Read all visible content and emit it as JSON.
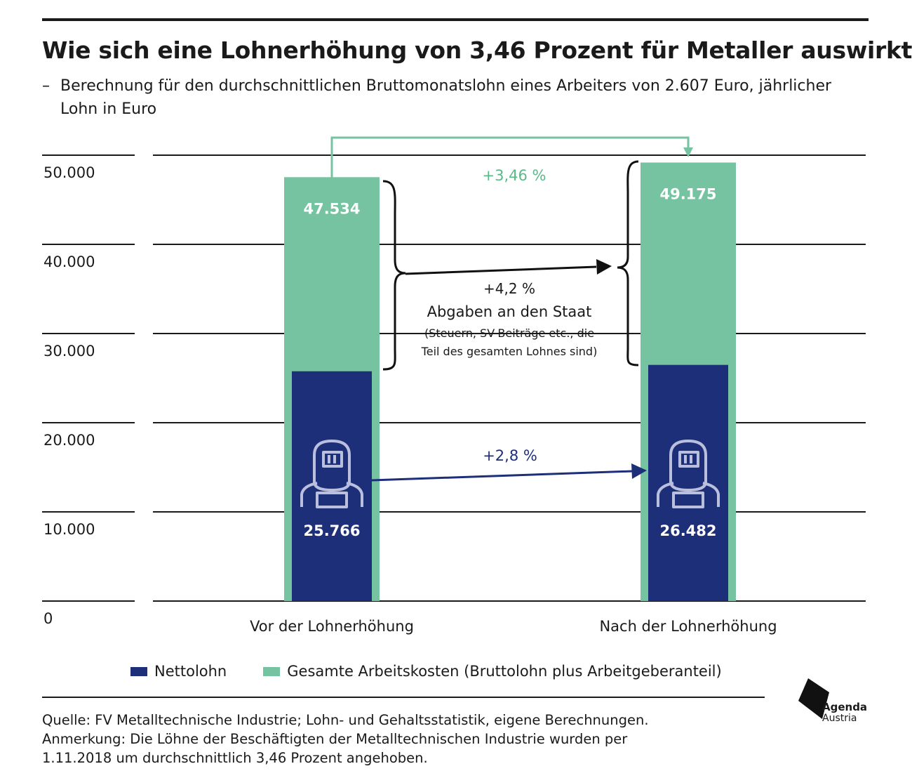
{
  "header": {
    "title": "Wie sich eine Lohnerhöhung von 3,46 Prozent für Metaller auswirkt",
    "subtitle_dash": "–",
    "subtitle": "Berechnung für den durchschnittlichen Bruttomonatslohn eines Arbeiters von 2.607 Euro, jährlicher Lohn in Euro"
  },
  "colors": {
    "nettolohn": "#1e2f7a",
    "arbeitskosten": "#75c3a0",
    "text": "#1a1a1a",
    "nettolohn_text": "#1e2f7a",
    "arbeitskosten_text": "#5bb889"
  },
  "chart_data": {
    "type": "bar",
    "categories": [
      "Vor der Lohnerhöhung",
      "Nach der Lohnerhöhung"
    ],
    "series": [
      {
        "name": "Gesamte Arbeitskosten (Bruttolohn plus Arbeitgeberanteil)",
        "values": [
          47534,
          49175
        ],
        "labels": [
          "47.534",
          "49.175"
        ]
      },
      {
        "name": "Nettolohn",
        "values": [
          25766,
          26482
        ],
        "labels": [
          "25.766",
          "26.482"
        ]
      }
    ],
    "ylim": [
      0,
      50000
    ],
    "yticks": [
      0,
      10000,
      20000,
      30000,
      40000,
      50000
    ],
    "ytick_labels": [
      "0",
      "10.000",
      "20.000",
      "30.000",
      "40.000",
      "50.000"
    ],
    "grid": true,
    "legend_position": "bottom",
    "annotations": {
      "gross_change": "+3,46 %",
      "net_change": "+2,8 %",
      "state_change": "+4,2 %",
      "state_title": "Abgaben an den Staat",
      "state_note_1": "(Steuern, SV-Beiträge etc., die",
      "state_note_2": "Teil des gesamten Lohnes sind)"
    }
  },
  "icons": [
    "welder-icon",
    "welder-icon"
  ],
  "legend": {
    "nettolohn": "Nettolohn",
    "arbeitskosten": "Gesamte Arbeitskosten (Bruttolohn plus Arbeitgeberanteil)"
  },
  "footer": {
    "source": "Quelle: FV Metalltechnische Industrie; Lohn- und Gehaltsstatistik, eigene Berechnungen.",
    "note_1": "Anmerkung: Die Löhne der Beschäftigten der Metalltechnischen Industrie wurden per",
    "note_2": "1.11.2018 um durchschnittlich 3,46 Prozent angehoben."
  },
  "logo": {
    "line1": "Agenda",
    "line2": "Austria"
  }
}
